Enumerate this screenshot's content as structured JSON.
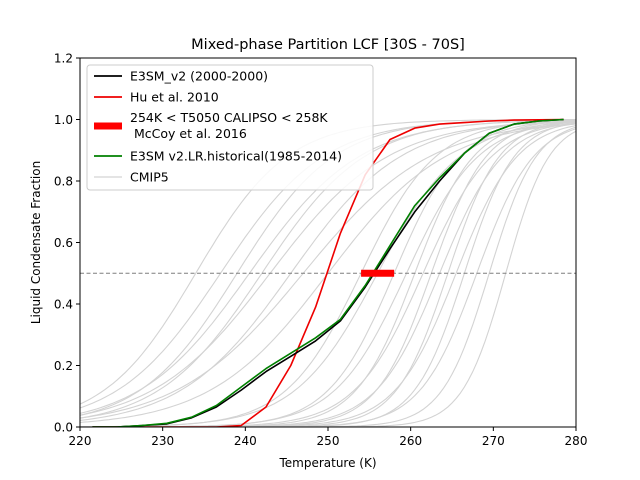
{
  "chart_data": {
    "type": "line",
    "title": "Mixed-phase Partition LCF [30S - 70S]",
    "xlabel": "Temperature (K)",
    "ylabel": "Liquid Condensate Fraction",
    "xlim": [
      220,
      280
    ],
    "ylim": [
      0,
      1.2
    ],
    "xticks": [
      220,
      230,
      240,
      250,
      260,
      270,
      280
    ],
    "yticks": [
      0.0,
      0.2,
      0.4,
      0.6,
      0.8,
      1.0,
      1.2
    ],
    "xtick_labels": [
      "220",
      "230",
      "240",
      "250",
      "260",
      "270",
      "280"
    ],
    "ytick_labels": [
      "0.0",
      "0.2",
      "0.4",
      "0.6",
      "0.8",
      "1.0",
      "1.2"
    ],
    "reference_line": {
      "y": 0.5,
      "style": "dashed",
      "color": "#7f7f7f"
    },
    "legend_position": "top-left",
    "legend": [
      {
        "label": "E3SM_v2 (2000-2000)",
        "color": "#000000",
        "style": "line"
      },
      {
        "label": "Hu et al. 2010",
        "color": "#ee0000",
        "style": "line"
      },
      {
        "label": "254K < T5050 CALIPSO < 258K",
        "label2": " McCoy et al. 2016",
        "color": "#ff0000",
        "style": "thick"
      },
      {
        "label": "E3SM v2.LR.historical(1985-2014)",
        "color": "#008000",
        "style": "line"
      },
      {
        "label": "CMIP5",
        "color": "#d3d3d3",
        "style": "line"
      }
    ],
    "series": [
      {
        "name": "E3SM_v2 (2000-2000)",
        "color": "#000000",
        "width": 1.6,
        "x": [
          221.5,
          224.5,
          227.5,
          230.5,
          233.5,
          236.5,
          239.5,
          242.5,
          245.5,
          248.5,
          251.5,
          254.5,
          257.5,
          260.5,
          263.5,
          266.5,
          269.5,
          272.5,
          275.5,
          278.5
        ],
        "y": [
          0.0,
          0.0,
          0.005,
          0.01,
          0.03,
          0.065,
          0.12,
          0.18,
          0.23,
          0.28,
          0.345,
          0.455,
          0.58,
          0.7,
          0.8,
          0.89,
          0.955,
          0.985,
          0.995,
          1.0
        ]
      },
      {
        "name": "Hu et al. 2010",
        "color": "#ee0000",
        "width": 1.6,
        "x": [
          221.5,
          224.5,
          227.5,
          230.5,
          233.5,
          236.5,
          239.5,
          242.5,
          245.5,
          248.5,
          251.5,
          254.5,
          257.5,
          260.5,
          263.5,
          266.5,
          269.5,
          272.5,
          275.5,
          278.5
        ],
        "y": [
          0.0,
          0.0,
          0.0,
          0.0,
          0.0,
          0.0,
          0.005,
          0.065,
          0.2,
          0.39,
          0.63,
          0.82,
          0.935,
          0.972,
          0.985,
          0.99,
          0.995,
          0.998,
          0.999,
          1.0
        ]
      },
      {
        "name": "E3SM v2.LR.historical(1985-2014)",
        "color": "#008000",
        "width": 1.6,
        "x": [
          221.5,
          224.5,
          227.5,
          230.5,
          233.5,
          236.5,
          239.5,
          242.5,
          245.5,
          248.5,
          251.5,
          254.5,
          257.5,
          260.5,
          263.5,
          266.5,
          269.5,
          272.5,
          275.5,
          278.5
        ],
        "y": [
          0.0,
          0.0,
          0.005,
          0.012,
          0.032,
          0.07,
          0.13,
          0.19,
          0.24,
          0.29,
          0.35,
          0.46,
          0.59,
          0.72,
          0.81,
          0.89,
          0.955,
          0.985,
          0.995,
          1.0
        ]
      }
    ],
    "cmip5_series": [
      {
        "t50": 234.0,
        "k": 0.18
      },
      {
        "t50": 237.0,
        "k": 0.16
      },
      {
        "t50": 239.0,
        "k": 0.17
      },
      {
        "t50": 240.5,
        "k": 0.15
      },
      {
        "t50": 242.0,
        "k": 0.16
      },
      {
        "t50": 243.0,
        "k": 0.14
      },
      {
        "t50": 245.5,
        "k": 0.15
      },
      {
        "t50": 247.0,
        "k": 0.13
      },
      {
        "t50": 250.0,
        "k": 0.14
      },
      {
        "t50": 254.0,
        "k": 0.22
      },
      {
        "t50": 256.0,
        "k": 0.2
      },
      {
        "t50": 258.0,
        "k": 0.25
      },
      {
        "t50": 259.5,
        "k": 0.23
      },
      {
        "t50": 260.5,
        "k": 0.28
      },
      {
        "t50": 261.5,
        "k": 0.24
      },
      {
        "t50": 262.5,
        "k": 0.3
      },
      {
        "t50": 263.5,
        "k": 0.26
      },
      {
        "t50": 264.5,
        "k": 0.32
      },
      {
        "t50": 265.5,
        "k": 0.27
      },
      {
        "t50": 266.5,
        "k": 0.33
      },
      {
        "t50": 268.0,
        "k": 0.29
      },
      {
        "t50": 269.5,
        "k": 0.35
      },
      {
        "t50": 271.5,
        "k": 0.38
      }
    ],
    "calipso_range": {
      "x": [
        254,
        258
      ],
      "y": 0.5,
      "color": "#ff0000"
    }
  }
}
